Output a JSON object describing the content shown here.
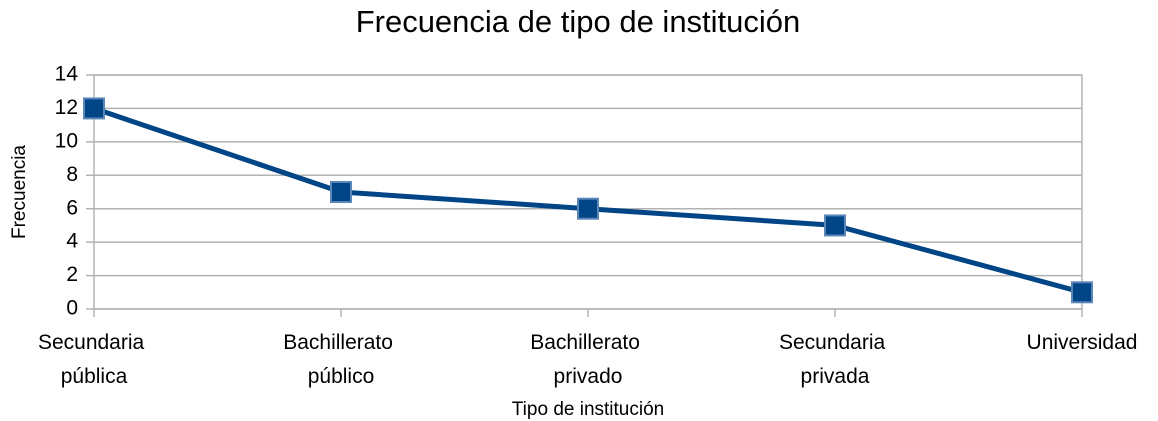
{
  "chart_data": {
    "type": "line",
    "title": "Frecuencia de tipo de institución",
    "x_label": "Tipo de institución",
    "y_label": "Frecuencia",
    "categories": [
      "Secundaria pública",
      "Bachillerato público",
      "Bachillerato privado",
      "Secundaria privada",
      "Universidad"
    ],
    "series": [
      {
        "name": "Frecuencia",
        "color": "#004586",
        "values": [
          12,
          7,
          6,
          5,
          1
        ]
      }
    ],
    "ylim": [
      0,
      14
    ],
    "yticks": [
      0,
      2,
      4,
      6,
      8,
      10,
      12,
      14
    ],
    "grid": true
  }
}
